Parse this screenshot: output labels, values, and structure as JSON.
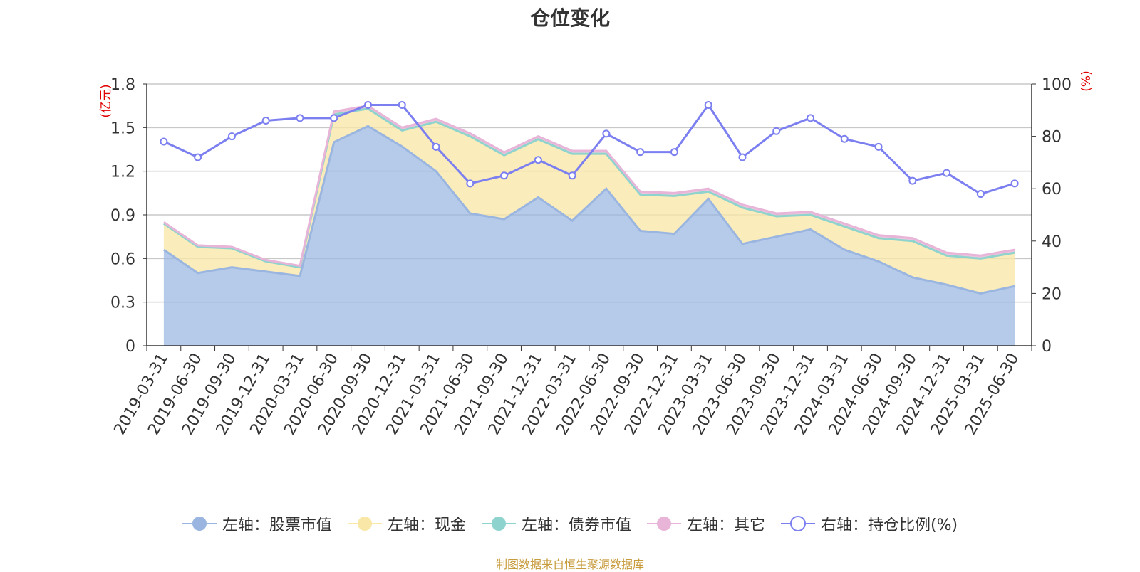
{
  "chart_data": {
    "type": "area",
    "title": "仓位变化",
    "left_axis": {
      "unit_label": "(亿元)",
      "ylim": [
        0,
        1.8
      ],
      "ticks": [
        "0",
        "0.3",
        "0.6",
        "0.9",
        "1.2",
        "1.5",
        "1.8"
      ]
    },
    "right_axis": {
      "unit_label": "(%)",
      "ylim": [
        0,
        100
      ],
      "ticks": [
        "0",
        "20",
        "40",
        "60",
        "80",
        "100"
      ]
    },
    "categories": [
      "2019-03-31",
      "2019-06-30",
      "2019-09-30",
      "2019-12-31",
      "2020-03-31",
      "2020-06-30",
      "2020-09-30",
      "2020-12-31",
      "2021-03-31",
      "2021-06-30",
      "2021-09-30",
      "2021-12-31",
      "2022-03-31",
      "2022-06-30",
      "2022-09-30",
      "2022-12-31",
      "2023-03-31",
      "2023-06-30",
      "2023-09-30",
      "2023-12-31",
      "2024-03-31",
      "2024-06-30",
      "2024-09-30",
      "2024-12-31",
      "2025-03-31",
      "2025-06-30"
    ],
    "series": [
      {
        "name": "左轴：股票市值",
        "axis": "left",
        "kind": "stacked-area",
        "color": "#9ab6e0",
        "values": [
          0.66,
          0.5,
          0.54,
          0.51,
          0.48,
          1.4,
          1.51,
          1.37,
          1.2,
          0.91,
          0.87,
          1.02,
          0.86,
          1.08,
          0.79,
          0.77,
          1.01,
          0.7,
          0.75,
          0.8,
          0.66,
          0.58,
          0.47,
          0.42,
          0.36,
          0.41
        ]
      },
      {
        "name": "左轴：现金",
        "axis": "left",
        "kind": "stacked-area",
        "color": "#f9e7a8",
        "values": [
          0.18,
          0.18,
          0.13,
          0.07,
          0.06,
          0.19,
          0.12,
          0.11,
          0.34,
          0.53,
          0.44,
          0.4,
          0.46,
          0.24,
          0.25,
          0.26,
          0.05,
          0.25,
          0.14,
          0.1,
          0.16,
          0.16,
          0.25,
          0.2,
          0.24,
          0.23
        ]
      },
      {
        "name": "左轴：债券市值",
        "axis": "left",
        "kind": "stacked-area",
        "color": "#8fd3cf",
        "values": [
          0,
          0,
          0,
          0,
          0,
          0,
          0,
          0,
          0,
          0,
          0,
          0,
          0,
          0,
          0,
          0,
          0,
          0,
          0,
          0,
          0,
          0,
          0,
          0,
          0,
          0
        ]
      },
      {
        "name": "左轴：其它",
        "axis": "left",
        "kind": "stacked-area",
        "color": "#e8b4d8",
        "values": [
          0.01,
          0.01,
          0.01,
          0.01,
          0.01,
          0.02,
          0.02,
          0.02,
          0.02,
          0.02,
          0.02,
          0.02,
          0.02,
          0.02,
          0.02,
          0.02,
          0.02,
          0.02,
          0.02,
          0.02,
          0.02,
          0.02,
          0.02,
          0.02,
          0.02,
          0.02
        ]
      },
      {
        "name": "右轴：持仓比例(%)",
        "axis": "right",
        "kind": "line",
        "color": "#7b7ff0",
        "values": [
          78,
          72,
          80,
          86,
          87,
          87,
          92,
          92,
          76,
          62,
          65,
          71,
          65,
          81,
          74,
          74,
          92,
          72,
          82,
          87,
          79,
          76,
          63,
          66,
          58,
          62
        ]
      }
    ],
    "grid": true,
    "legend_position": "bottom"
  },
  "footer": "制图数据来自恒生聚源数据库"
}
